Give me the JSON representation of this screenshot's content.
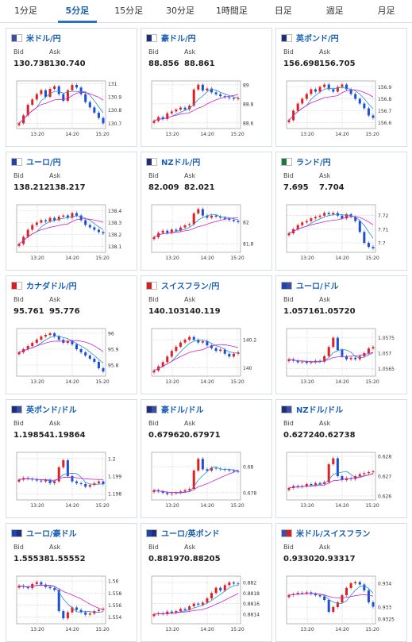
{
  "tabs": [
    "1分足",
    "5分足",
    "15分足",
    "30分足",
    "1時間足",
    "日足",
    "週足",
    "月足"
  ],
  "active_tab": 1,
  "labels": {
    "bid": "Bid",
    "ask": "Ask"
  },
  "colors": {
    "up": "#e02020",
    "down": "#1a4fd6",
    "ma_fast": "#2a8bd6",
    "ma_slow": "#cc22cc",
    "grid": "#c8c8c8",
    "accent": "#1a5fb4"
  },
  "cards": [
    {
      "pair": "米ドル/円",
      "flag": "flag-us-jp",
      "bid": "130.738",
      "ask": "130.740",
      "chart_data": {
        "type": "candlestick",
        "x_ticks": [
          "13:20",
          "14:20",
          "15:20"
        ],
        "y_ticks": [
          "131",
          "130.9",
          "130.8",
          "130.7"
        ],
        "ylim": [
          130.66,
          131.02
        ],
        "closes": [
          130.7,
          130.76,
          130.84,
          130.88,
          130.92,
          130.95,
          130.9,
          130.96,
          130.98,
          130.92,
          130.87,
          130.95,
          130.99,
          130.97,
          130.92,
          130.86,
          130.82,
          130.78,
          130.74,
          130.7
        ]
      }
    },
    {
      "pair": "豪ドル/円",
      "flag": "flag-au-jp",
      "bid": "88.856",
      "ask": "88.861",
      "chart_data": {
        "type": "candlestick",
        "x_ticks": [
          "13:20",
          "14:20",
          "15:20"
        ],
        "y_ticks": [
          "89",
          "88.8",
          "88.6"
        ],
        "ylim": [
          88.54,
          89.04
        ],
        "closes": [
          88.62,
          88.66,
          88.64,
          88.7,
          88.72,
          88.74,
          88.76,
          88.74,
          88.78,
          88.95,
          89.0,
          88.94,
          88.96,
          88.92,
          88.9,
          88.88,
          88.87,
          88.86,
          88.85,
          88.86
        ]
      }
    },
    {
      "pair": "英ポンド/円",
      "flag": "flag-gb-jp",
      "bid": "156.698",
      "ask": "156.705",
      "chart_data": {
        "type": "candlestick",
        "x_ticks": [
          "13:20",
          "14:20",
          "15:20"
        ],
        "y_ticks": [
          "156.9",
          "156.8",
          "156.7",
          "156.6"
        ],
        "ylim": [
          156.55,
          156.95
        ],
        "closes": [
          156.62,
          156.7,
          156.76,
          156.8,
          156.84,
          156.88,
          156.86,
          156.9,
          156.92,
          156.88,
          156.86,
          156.9,
          156.92,
          156.88,
          156.84,
          156.8,
          156.76,
          156.72,
          156.66,
          156.64
        ]
      }
    },
    {
      "pair": "ユーロ/円",
      "flag": "flag-eu-jp",
      "bid": "138.212",
      "ask": "138.217",
      "chart_data": {
        "type": "candlestick",
        "x_ticks": [
          "13:20",
          "14:20",
          "15:20"
        ],
        "y_ticks": [
          "138.4",
          "138.3",
          "138.2",
          "138.1"
        ],
        "ylim": [
          138.05,
          138.45
        ],
        "closes": [
          138.12,
          138.18,
          138.24,
          138.28,
          138.3,
          138.32,
          138.31,
          138.34,
          138.32,
          138.35,
          138.36,
          138.34,
          138.38,
          138.36,
          138.32,
          138.28,
          138.26,
          138.24,
          138.22,
          138.21
        ]
      }
    },
    {
      "pair": "NZドル/円",
      "flag": "flag-nz-jp",
      "bid": "82.009",
      "ask": "82.021",
      "chart_data": {
        "type": "candlestick",
        "x_ticks": [
          "13:20",
          "14:20",
          "15:20"
        ],
        "y_ticks": [
          "82",
          "81.8"
        ],
        "ylim": [
          81.72,
          82.16
        ],
        "closes": [
          81.86,
          81.9,
          81.92,
          81.9,
          81.93,
          81.92,
          81.95,
          81.97,
          81.98,
          82.08,
          82.12,
          82.06,
          82.04,
          82.06,
          82.05,
          82.04,
          82.03,
          82.02,
          82.01,
          82.0
        ]
      }
    },
    {
      "pair": "ランド/円",
      "flag": "flag-za-jp",
      "bid": "7.695",
      "ask": "7.704",
      "chart_data": {
        "type": "candlestick",
        "x_ticks": [
          "13:20",
          "14:20",
          "15:20"
        ],
        "y_ticks": [
          "7.72",
          "7.71",
          "7.7"
        ],
        "ylim": [
          7.693,
          7.728
        ],
        "closes": [
          7.707,
          7.71,
          7.713,
          7.715,
          7.716,
          7.718,
          7.719,
          7.72,
          7.722,
          7.721,
          7.722,
          7.72,
          7.718,
          7.721,
          7.719,
          7.716,
          7.708,
          7.7,
          7.697,
          7.696
        ]
      }
    },
    {
      "pair": "カナダドル/円",
      "flag": "flag-ca-jp",
      "bid": "95.761",
      "ask": "95.776",
      "chart_data": {
        "type": "candlestick",
        "x_ticks": [
          "13:20",
          "14:20",
          "15:20"
        ],
        "y_ticks": [
          "96",
          "95.9",
          "95.8"
        ],
        "ylim": [
          95.73,
          96.03
        ],
        "closes": [
          95.88,
          95.9,
          95.92,
          95.94,
          95.96,
          95.98,
          95.99,
          96.0,
          95.98,
          95.96,
          95.94,
          95.95,
          95.93,
          95.9,
          95.88,
          95.86,
          95.84,
          95.82,
          95.78,
          95.76
        ]
      }
    },
    {
      "pair": "スイスフラン/円",
      "flag": "flag-ch-jp",
      "bid": "140.103",
      "ask": "140.119",
      "chart_data": {
        "type": "candlestick",
        "x_ticks": [
          "13:20",
          "14:20",
          "15:20"
        ],
        "y_ticks": [
          "140.2",
          "140"
        ],
        "ylim": [
          139.94,
          140.28
        ],
        "closes": [
          139.98,
          140.01,
          140.04,
          140.08,
          140.12,
          140.15,
          140.18,
          140.2,
          140.22,
          140.2,
          140.18,
          140.19,
          140.16,
          140.14,
          140.12,
          140.13,
          140.1,
          140.08,
          140.1,
          140.11
        ]
      }
    },
    {
      "pair": "ユーロ/ドル",
      "flag": "flag-eu-us",
      "bid": "1.05716",
      "ask": "1.05720",
      "chart_data": {
        "type": "candlestick",
        "x_ticks": [
          "13:20",
          "14:20",
          "15:20"
        ],
        "y_ticks": [
          "1.0575",
          "1.057",
          "1.0565"
        ],
        "ylim": [
          1.05625,
          1.0578
        ],
        "closes": [
          1.0568,
          1.05675,
          1.0567,
          1.05672,
          1.05668,
          1.0567,
          1.05675,
          1.05672,
          1.0569,
          1.0572,
          1.0575,
          1.0571,
          1.0569,
          1.0568,
          1.05685,
          1.0568,
          1.0569,
          1.057,
          1.05715,
          1.0572
        ]
      }
    },
    {
      "pair": "英ポンド/ドル",
      "flag": "flag-gb-us",
      "bid": "1.19854",
      "ask": "1.19864",
      "chart_data": {
        "type": "candlestick",
        "x_ticks": [
          "13:20",
          "14:20",
          "15:20"
        ],
        "y_ticks": [
          "1.2",
          "1.199",
          "1.198"
        ],
        "ylim": [
          1.19765,
          1.20035
        ],
        "closes": [
          1.1988,
          1.1989,
          1.19885,
          1.1988,
          1.19875,
          1.1987,
          1.1988,
          1.1986,
          1.1987,
          1.1995,
          1.1999,
          1.199,
          1.1987,
          1.1986,
          1.19855,
          1.1984,
          1.1985,
          1.1986,
          1.1987,
          1.19855
        ]
      }
    },
    {
      "pair": "豪ドル/ドル",
      "flag": "flag-au-us",
      "bid": "0.67962",
      "ask": "0.67971",
      "chart_data": {
        "type": "candlestick",
        "x_ticks": [
          "13:20",
          "14:20",
          "15:20"
        ],
        "y_ticks": [
          "0.68",
          "0.678"
        ],
        "ylim": [
          0.67745,
          0.6811
        ],
        "closes": [
          0.6782,
          0.6781,
          0.678,
          0.6779,
          0.67795,
          0.678,
          0.6781,
          0.6782,
          0.6783,
          0.6797,
          0.6806,
          0.6798,
          0.6797,
          0.6799,
          0.67985,
          0.6798,
          0.67975,
          0.6797,
          0.67965,
          0.67962
        ]
      }
    },
    {
      "pair": "NZドル/ドル",
      "flag": "flag-nz-us",
      "bid": "0.62724",
      "ask": "0.62738",
      "chart_data": {
        "type": "candlestick",
        "x_ticks": [
          "13:20",
          "14:20",
          "15:20"
        ],
        "y_ticks": [
          "0.628",
          "0.627",
          "0.626"
        ],
        "ylim": [
          0.6258,
          0.6282
        ],
        "closes": [
          0.6264,
          0.6265,
          0.62645,
          0.6265,
          0.6266,
          0.62655,
          0.62665,
          0.6266,
          0.6267,
          0.6276,
          0.6279,
          0.627,
          0.6268,
          0.6269,
          0.62685,
          0.627,
          0.6271,
          0.62715,
          0.6272,
          0.62724
        ]
      }
    },
    {
      "pair": "ユーロ/豪ドル",
      "flag": "flag-eu-au",
      "bid": "1.55538",
      "ask": "1.55552",
      "chart_data": {
        "type": "candlestick",
        "x_ticks": [
          "13:20",
          "14:20",
          "15:20"
        ],
        "y_ticks": [
          "1.56",
          "1.558",
          "1.556",
          "1.554"
        ],
        "ylim": [
          1.5529,
          1.5608
        ],
        "closes": [
          1.5592,
          1.559,
          1.5588,
          1.5595,
          1.5598,
          1.5594,
          1.559,
          1.5588,
          1.5585,
          1.555,
          1.5538,
          1.5548,
          1.5556,
          1.5552,
          1.5548,
          1.5544,
          1.5546,
          1.555,
          1.5552,
          1.55538
        ]
      }
    },
    {
      "pair": "ユーロ/英ポンド",
      "flag": "flag-eu-gb",
      "bid": "0.88197",
      "ask": "0.88205",
      "chart_data": {
        "type": "candlestick",
        "x_ticks": [
          "13:20",
          "14:20",
          "15:20"
        ],
        "y_ticks": [
          "0.882",
          "0.8818",
          "0.8816",
          "0.8814"
        ],
        "ylim": [
          0.88122,
          0.88212
        ],
        "closes": [
          0.8814,
          0.88142,
          0.8814,
          0.88145,
          0.88143,
          0.88146,
          0.8815,
          0.88148,
          0.88155,
          0.8816,
          0.88158,
          0.88162,
          0.8817,
          0.8818,
          0.8819,
          0.88185,
          0.88195,
          0.882,
          0.88198,
          0.88197
        ]
      }
    },
    {
      "pair": "米ドル/スイスフラン",
      "flag": "flag-us-ch",
      "bid": "0.93302",
      "ask": "0.93317",
      "chart_data": {
        "type": "candlestick",
        "x_ticks": [
          "13:20",
          "14:20",
          "15:20"
        ],
        "y_ticks": [
          "0.934",
          "0.933",
          "0.9325"
        ],
        "ylim": [
          0.9323,
          0.9343
        ],
        "closes": [
          0.9335,
          0.93355,
          0.9336,
          0.93358,
          0.93362,
          0.93355,
          0.9335,
          0.93345,
          0.9333,
          0.9328,
          0.933,
          0.9332,
          0.9335,
          0.9338,
          0.934,
          0.93405,
          0.93395,
          0.9337,
          0.9332,
          0.93302
        ]
      }
    }
  ]
}
